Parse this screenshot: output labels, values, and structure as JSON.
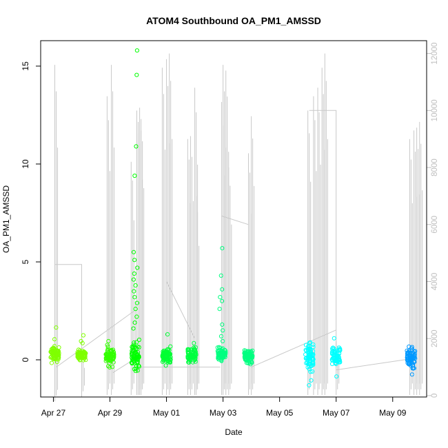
{
  "chart_data": {
    "type": "scatter",
    "title": "ATOM4 Southbound OA_PM1_AMSSD",
    "xlabel": "Date",
    "ylabel": "OA_PM1_AMSSD",
    "x_ticks": [
      "Apr 27",
      "Apr 29",
      "May 01",
      "May 03",
      "May 05",
      "May 07",
      "May 09"
    ],
    "y_left_ticks": [
      0,
      5,
      10,
      15
    ],
    "y_left_lim": [
      -1.9,
      16.3
    ],
    "y_right_ticks": [
      0,
      2000,
      4000,
      6000,
      8000,
      10000,
      12000
    ],
    "y_right_lim": [
      -50,
      12450
    ],
    "x_lim_days": [
      -0.45,
      13.2
    ],
    "grid": false,
    "point_color_scale": [
      "#7fff00",
      "#00ff00",
      "#00ff80",
      "#00ffff",
      "#0080ff"
    ],
    "secondary_line_color": "#c8c8c8",
    "clusters": [
      {
        "day": 0.05,
        "min": -0.3,
        "max": 0.9,
        "color": "#7fff00",
        "outliers": [
          1.65,
          1.05
        ]
      },
      {
        "day": 1.0,
        "min": -0.1,
        "max": 0.55,
        "color": "#7fff00",
        "outliers": [
          1.25,
          0.95,
          0.85
        ]
      },
      {
        "day": 2.0,
        "min": -0.5,
        "max": 0.9,
        "color": "#33ff00",
        "outliers": [
          0.95
        ]
      },
      {
        "day": 2.9,
        "min": -0.9,
        "max": 1.2,
        "color": "#00ff00",
        "outliers": [
          15.8,
          14.55,
          10.9,
          9.4,
          5.5,
          5.1,
          4.7,
          4.4,
          4.1,
          3.8,
          3.5,
          3.2,
          2.9,
          2.6,
          2.2,
          1.9,
          1.6
        ]
      },
      {
        "day": 4.0,
        "min": -0.4,
        "max": 0.8,
        "color": "#00ff33",
        "outliers": [
          1.3
        ]
      },
      {
        "day": 4.9,
        "min": -0.3,
        "max": 0.8,
        "color": "#00ff40",
        "outliers": [
          0.85
        ]
      },
      {
        "day": 5.95,
        "min": -0.2,
        "max": 0.75,
        "color": "#00ff80",
        "outliers": [
          5.7,
          4.3,
          3.6,
          3.2,
          3.0,
          2.6,
          1.8,
          1.5,
          1.2,
          0.95
        ]
      },
      {
        "day": 6.9,
        "min": -0.3,
        "max": 0.65,
        "color": "#00ff80",
        "outliers": []
      },
      {
        "day": 9.05,
        "min": -1.0,
        "max": 1.2,
        "color": "#00ffff",
        "outliers": [
          -1.3,
          -1.05
        ]
      },
      {
        "day": 10.0,
        "min": -0.6,
        "max": 0.8,
        "color": "#00ffff",
        "outliers": [
          1.1,
          -0.85
        ]
      },
      {
        "day": 12.65,
        "min": -0.65,
        "max": 0.9,
        "color": "#0099ff",
        "outliers": [
          -0.75
        ]
      }
    ],
    "secondary_series": [
      {
        "day": 0.05,
        "min": -200,
        "max": 11600
      },
      {
        "day": 1.0,
        "min": -50,
        "max": 1300
      },
      {
        "day": 1.9,
        "min": 20,
        "max": 10500
      },
      {
        "day": 2.05,
        "min": 20,
        "max": 11600
      },
      {
        "day": 2.75,
        "min": 20,
        "max": 8200
      },
      {
        "day": 2.95,
        "min": 20,
        "max": 10000
      },
      {
        "day": 3.0,
        "min": 20,
        "max": 9600
      },
      {
        "day": 3.05,
        "min": 20,
        "max": 10100
      },
      {
        "day": 3.1,
        "min": 20,
        "max": 9700
      },
      {
        "day": 3.85,
        "min": 20,
        "max": 11500
      },
      {
        "day": 4.0,
        "min": 20,
        "max": 11800
      },
      {
        "day": 4.1,
        "min": 20,
        "max": 12000
      },
      {
        "day": 4.75,
        "min": 20,
        "max": 9000
      },
      {
        "day": 4.85,
        "min": 20,
        "max": 9100
      },
      {
        "day": 5.0,
        "min": 20,
        "max": 10800
      },
      {
        "day": 5.05,
        "min": 20,
        "max": 7000
      },
      {
        "day": 5.95,
        "min": 20,
        "max": 10300
      },
      {
        "day": 6.0,
        "min": 20,
        "max": 11600
      },
      {
        "day": 6.1,
        "min": 20,
        "max": 11400
      },
      {
        "day": 6.2,
        "min": 20,
        "max": 8000
      },
      {
        "day": 6.9,
        "min": 20,
        "max": 8500
      },
      {
        "day": 7.0,
        "min": 20,
        "max": 9800
      },
      {
        "day": 9.0,
        "min": 20,
        "max": 10000
      },
      {
        "day": 9.2,
        "min": 20,
        "max": 10500
      },
      {
        "day": 9.35,
        "min": 20,
        "max": 10800
      },
      {
        "day": 9.5,
        "min": 20,
        "max": 11500
      },
      {
        "day": 9.6,
        "min": 20,
        "max": 12000
      },
      {
        "day": 10.0,
        "min": 20,
        "max": 1900
      },
      {
        "day": 12.6,
        "min": 20,
        "max": 9000
      },
      {
        "day": 12.75,
        "min": 20,
        "max": 9300
      },
      {
        "day": 12.85,
        "min": 20,
        "max": 9400
      },
      {
        "day": 12.95,
        "min": 20,
        "max": 9600
      }
    ],
    "secondary_connectors": [
      [
        [
          0.05,
          4600
        ],
        [
          1.0,
          4600
        ],
        [
          1.0,
          1300
        ]
      ],
      [
        [
          0.1,
          1000
        ],
        [
          2.9,
          3000
        ]
      ],
      [
        [
          2.9,
          3300
        ],
        [
          2.9,
          1300
        ],
        [
          2.1,
          800
        ]
      ],
      [
        [
          4.0,
          4000
        ],
        [
          5.0,
          2000
        ]
      ],
      [
        [
          3.1,
          1000
        ],
        [
          5.0,
          1000
        ],
        [
          5.9,
          1000
        ]
      ],
      [
        [
          5.95,
          6300
        ],
        [
          6.9,
          6000
        ]
      ],
      [
        [
          7.0,
          1000
        ],
        [
          10.0,
          2300
        ]
      ],
      [
        [
          9.05,
          10000
        ],
        [
          10.0,
          10000
        ],
        [
          10.0,
          1000
        ]
      ],
      [
        [
          10.0,
          900
        ],
        [
          12.7,
          1300
        ]
      ]
    ]
  }
}
